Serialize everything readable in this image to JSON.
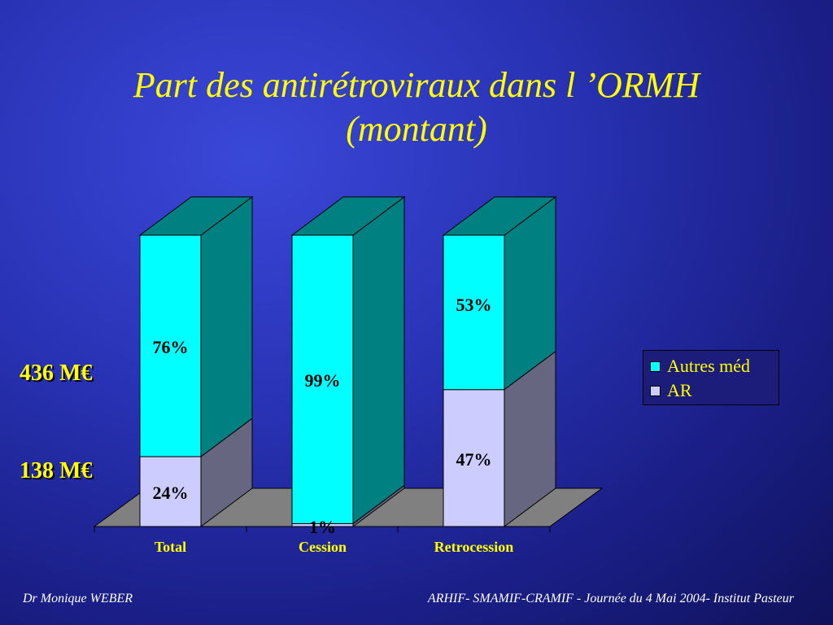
{
  "slide": {
    "title_line1": "Part des antirétroviraux dans l ’ORMH",
    "title_line2": "(montant)",
    "label_total": "436 M€",
    "label_ar": "138 M€",
    "footer_left": "Dr Monique WEBER",
    "footer_right": "ARHIF- SMAMIF-CRAMIF - Journée du 4 Mai 2004- Institut Pasteur"
  },
  "colors": {
    "title": "#ffff00",
    "autres_front": "#00ffff",
    "autres_side": "#008080",
    "ar_front": "#ccccff",
    "ar_side": "#666680",
    "floor": "#808080"
  },
  "chart_data": {
    "type": "bar",
    "stacked": true,
    "percent": true,
    "three_d": true,
    "categories": [
      "Total",
      "Cession",
      "Retrocession"
    ],
    "series": [
      {
        "name": "AR",
        "values": [
          24,
          1,
          47
        ],
        "labels": [
          "24%",
          "1%",
          "47%"
        ]
      },
      {
        "name": "Autres méd",
        "values": [
          76,
          99,
          53
        ],
        "labels": [
          "76%",
          "99%",
          "53%"
        ]
      }
    ],
    "legend_position": "right",
    "ylim": [
      0,
      100
    ]
  }
}
